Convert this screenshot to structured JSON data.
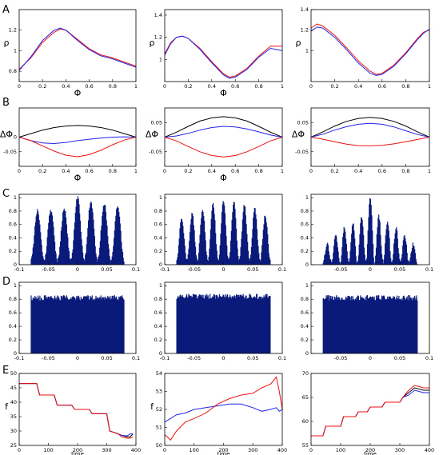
{
  "row_labels": [
    "A",
    "B",
    "C",
    "D",
    "E"
  ],
  "colors": {
    "black": "#000000",
    "blue": "#2222ee",
    "red": "#ee1111",
    "bars": "#0a1a7a"
  },
  "chart_data": [
    {
      "id": "A1",
      "type": "line",
      "ylabel": "ρ",
      "xlabel": "Φ",
      "xlim": [
        0,
        1
      ],
      "ylim": [
        0.7,
        1.4
      ],
      "xticks": [
        "0",
        "0.2",
        "0.4",
        "0.6",
        "0.8",
        "1"
      ],
      "yticks": [
        "0.8",
        "1",
        "1.2"
      ],
      "x": [
        0,
        0.1,
        0.2,
        0.3,
        0.35,
        0.4,
        0.5,
        0.6,
        0.7,
        0.8,
        0.9,
        1.0
      ],
      "series": [
        {
          "color": "red",
          "values": [
            0.82,
            0.93,
            1.08,
            1.18,
            1.21,
            1.2,
            1.11,
            1.02,
            0.96,
            0.93,
            0.89,
            0.85
          ]
        },
        {
          "color": "blue",
          "values": [
            0.81,
            0.94,
            1.1,
            1.2,
            1.22,
            1.2,
            1.1,
            1.01,
            0.95,
            0.92,
            0.88,
            0.84
          ]
        }
      ]
    },
    {
      "id": "A2",
      "type": "line",
      "ylabel": "ρ",
      "xlabel": "Φ",
      "xlim": [
        0,
        1
      ],
      "ylim": [
        0.8,
        1.45
      ],
      "xticks": [
        "0",
        "0.2",
        "0.4",
        "0.6",
        "0.8",
        "1"
      ],
      "yticks": [
        "1",
        "1.2",
        "1.4"
      ],
      "x": [
        0,
        0.05,
        0.1,
        0.15,
        0.2,
        0.3,
        0.4,
        0.5,
        0.55,
        0.6,
        0.7,
        0.8,
        0.9,
        1.0
      ],
      "series": [
        {
          "color": "red",
          "values": [
            1.05,
            1.15,
            1.2,
            1.21,
            1.19,
            1.1,
            0.98,
            0.87,
            0.84,
            0.85,
            0.92,
            1.03,
            1.12,
            1.12
          ]
        },
        {
          "color": "blue",
          "values": [
            1.04,
            1.14,
            1.2,
            1.21,
            1.19,
            1.09,
            0.97,
            0.86,
            0.83,
            0.84,
            0.91,
            1.02,
            1.1,
            1.08
          ]
        }
      ]
    },
    {
      "id": "A3",
      "type": "line",
      "ylabel": "ρ",
      "xlabel": "",
      "xlim": [
        0,
        1
      ],
      "ylim": [
        0.7,
        1.4
      ],
      "xticks": [
        "0",
        "0.2",
        "0.4",
        "0.6",
        "0.8",
        "1"
      ],
      "yticks": [
        "1",
        "1.2",
        "1.4"
      ],
      "x": [
        0,
        0.05,
        0.1,
        0.2,
        0.3,
        0.4,
        0.5,
        0.55,
        0.6,
        0.7,
        0.8,
        0.9,
        0.95,
        1.0
      ],
      "series": [
        {
          "color": "red",
          "values": [
            1.22,
            1.26,
            1.24,
            1.15,
            1.03,
            0.9,
            0.8,
            0.77,
            0.78,
            0.86,
            0.98,
            1.12,
            1.18,
            1.2
          ]
        },
        {
          "color": "blue",
          "values": [
            1.19,
            1.23,
            1.22,
            1.13,
            1.01,
            0.88,
            0.78,
            0.76,
            0.77,
            0.85,
            0.97,
            1.11,
            1.17,
            1.21
          ]
        }
      ]
    },
    {
      "id": "B1",
      "type": "line",
      "ylabel": "ΔΦ",
      "xlabel": "Φ",
      "xlim": [
        0,
        1
      ],
      "ylim": [
        -0.1,
        0.1
      ],
      "xticks": [
        "0",
        "0.2",
        "0.4",
        "0.6",
        "0.8",
        "1"
      ],
      "yticks": [
        "-0.05",
        "0"
      ],
      "x": [
        0,
        0.1,
        0.2,
        0.3,
        0.4,
        0.5,
        0.6,
        0.7,
        0.8,
        0.9,
        1.0
      ],
      "series": [
        {
          "color": "black",
          "values": [
            0,
            0.012,
            0.024,
            0.033,
            0.038,
            0.04,
            0.038,
            0.033,
            0.024,
            0.012,
            0
          ]
        },
        {
          "color": "blue",
          "values": [
            0,
            -0.012,
            -0.02,
            -0.022,
            -0.018,
            -0.012,
            -0.007,
            -0.003,
            0,
            0.001,
            0
          ]
        },
        {
          "color": "red",
          "values": [
            0,
            -0.012,
            -0.03,
            -0.048,
            -0.062,
            -0.067,
            -0.06,
            -0.045,
            -0.026,
            -0.01,
            0
          ]
        }
      ]
    },
    {
      "id": "B2",
      "type": "line",
      "ylabel": "ΔΦ",
      "xlabel": "Φ",
      "xlim": [
        0,
        1
      ],
      "ylim": [
        -0.1,
        0.1
      ],
      "xticks": [
        "0",
        "0.2",
        "0.4",
        "0.6",
        "0.8",
        "1"
      ],
      "yticks": [
        "-0.05",
        "0.05"
      ],
      "x": [
        0,
        0.1,
        0.2,
        0.3,
        0.4,
        0.5,
        0.6,
        0.7,
        0.8,
        0.9,
        1.0
      ],
      "series": [
        {
          "color": "black",
          "values": [
            0,
            0.017,
            0.037,
            0.055,
            0.066,
            0.07,
            0.066,
            0.055,
            0.037,
            0.017,
            0
          ]
        },
        {
          "color": "blue",
          "values": [
            0,
            0.004,
            0.013,
            0.024,
            0.033,
            0.037,
            0.035,
            0.028,
            0.018,
            0.007,
            0
          ]
        },
        {
          "color": "red",
          "values": [
            0,
            -0.013,
            -0.032,
            -0.05,
            -0.063,
            -0.068,
            -0.063,
            -0.05,
            -0.032,
            -0.013,
            0
          ]
        }
      ]
    },
    {
      "id": "B3",
      "type": "line",
      "ylabel": "ΔΦ",
      "xlabel": "",
      "xlim": [
        0,
        1
      ],
      "ylim": [
        -0.1,
        0.1
      ],
      "xticks": [
        "0",
        "0.2",
        "0.4",
        "0.6",
        "0.8",
        "1"
      ],
      "yticks": [
        "-0.05",
        "0.05"
      ],
      "x": [
        0,
        0.1,
        0.2,
        0.3,
        0.4,
        0.5,
        0.6,
        0.7,
        0.8,
        0.9,
        1.0
      ],
      "series": [
        {
          "color": "black",
          "values": [
            0,
            0.018,
            0.038,
            0.054,
            0.064,
            0.068,
            0.064,
            0.054,
            0.038,
            0.018,
            0
          ]
        },
        {
          "color": "blue",
          "values": [
            0,
            0.01,
            0.024,
            0.036,
            0.044,
            0.047,
            0.044,
            0.035,
            0.022,
            0.009,
            0
          ]
        },
        {
          "color": "red",
          "values": [
            0,
            -0.007,
            -0.016,
            -0.024,
            -0.029,
            -0.03,
            -0.028,
            -0.023,
            -0.016,
            -0.008,
            0
          ]
        }
      ]
    },
    {
      "id": "C1",
      "type": "histogram",
      "xlim": [
        -0.1,
        0.1
      ],
      "ylim": [
        0,
        1.05
      ],
      "xticks": [
        "-0.1",
        "-0.05",
        "0",
        "0.05",
        "0.1"
      ],
      "yticks": [
        "0",
        "0.2",
        "0.4",
        "0.6",
        "0.8",
        "1"
      ],
      "data_range": [
        -0.08,
        0.08
      ],
      "peaks": 7,
      "peak_heights": [
        0.8,
        0.8,
        0.82,
        1.0,
        0.93,
        0.9,
        0.87
      ],
      "troughs": 0.05
    },
    {
      "id": "C2",
      "type": "histogram",
      "xlim": [
        -0.1,
        0.1
      ],
      "ylim": [
        0,
        1.05
      ],
      "xticks": [
        "-0.1",
        "-0.05",
        "0",
        "0.05",
        "0.1"
      ],
      "yticks": [
        "0",
        "0.2",
        "0.4",
        "0.6",
        "0.8",
        "1"
      ],
      "data_range": [
        -0.08,
        0.08
      ],
      "peaks": 9,
      "peak_heights": [
        0.68,
        0.74,
        0.82,
        0.9,
        0.94,
        0.92,
        0.88,
        0.82,
        0.72
      ],
      "troughs": 0.05
    },
    {
      "id": "C3",
      "type": "histogram",
      "xlim": [
        -0.1,
        0.1
      ],
      "ylim": [
        0,
        1.05
      ],
      "xticks": [
        "-0.05",
        "0",
        "0.05",
        "0.1"
      ],
      "yticks": [
        "0",
        "0.2",
        "0.4",
        "0.6",
        "0.8",
        "1"
      ],
      "data_range": [
        -0.08,
        0.08
      ],
      "peaks": 11,
      "peak_heights": [
        0.3,
        0.42,
        0.55,
        0.62,
        0.72,
        1.0,
        0.72,
        0.64,
        0.54,
        0.42,
        0.3
      ],
      "troughs": 0.02
    },
    {
      "id": "D1",
      "type": "histogram",
      "xlim": [
        -0.1,
        0.1
      ],
      "ylim": [
        0,
        1.05
      ],
      "xticks": [
        "-0.1",
        "-0.05",
        "0",
        "0.05",
        "0.1"
      ],
      "yticks": [
        "0",
        "0.2",
        "0.4",
        "0.6",
        "0.8",
        "1"
      ],
      "data_range": [
        -0.08,
        0.08
      ],
      "level": 0.8
    },
    {
      "id": "D2",
      "type": "histogram",
      "xlim": [
        -0.1,
        0.1
      ],
      "ylim": [
        0,
        1.05
      ],
      "xticks": [
        "-0.1",
        "-0.05",
        "0",
        "0.05",
        "0.1"
      ],
      "yticks": [
        "0",
        "0.2",
        "0.4",
        "0.6",
        "0.8",
        "1"
      ],
      "data_range": [
        -0.08,
        0.08
      ],
      "level": 0.82
    },
    {
      "id": "D3",
      "type": "histogram",
      "xlim": [
        -0.1,
        0.1
      ],
      "ylim": [
        0,
        1.05
      ],
      "xticks": [
        "-0.05",
        "0",
        "0.05",
        "0.1"
      ],
      "yticks": [
        "0",
        "0.2",
        "0.4",
        "0.6",
        "0.8",
        "1"
      ],
      "data_range": [
        -0.08,
        0.08
      ],
      "level": 0.8
    },
    {
      "id": "E1",
      "type": "line",
      "ylabel": "f",
      "xlabel": "time",
      "xlim": [
        0,
        400
      ],
      "ylim": [
        25,
        50
      ],
      "xticks": [
        "0",
        "100",
        "200",
        "300",
        "400"
      ],
      "yticks": [
        "25",
        "30",
        "35",
        "40",
        "45",
        "50"
      ],
      "x": [
        0,
        30,
        60,
        70,
        120,
        130,
        180,
        190,
        240,
        250,
        300,
        310,
        340,
        350,
        370,
        380,
        390
      ],
      "series": [
        {
          "color": "black",
          "values": [
            46.5,
            46.5,
            46.5,
            42.5,
            42.5,
            39,
            39,
            37.5,
            37.5,
            36,
            36,
            30,
            29,
            28.5,
            28,
            28,
            29
          ]
        },
        {
          "color": "blue",
          "values": [
            46.5,
            46.5,
            46.5,
            42.5,
            42.5,
            39,
            39,
            37.5,
            37.5,
            36,
            36,
            30,
            29,
            28.5,
            28.3,
            29,
            29
          ]
        },
        {
          "color": "red",
          "values": [
            46.5,
            46.5,
            46.5,
            42.5,
            42.5,
            39,
            39,
            37.5,
            37.5,
            36,
            36,
            30,
            29,
            28,
            27.5,
            27.5,
            28
          ]
        }
      ]
    },
    {
      "id": "E2",
      "type": "line",
      "ylabel": "f",
      "xlabel": "time",
      "xlim": [
        0,
        400
      ],
      "ylim": [
        50,
        54
      ],
      "xticks": [
        "0",
        "100",
        "200",
        "300",
        "400"
      ],
      "yticks": [
        "50",
        "51",
        "52",
        "53",
        "54"
      ],
      "x": [
        0,
        20,
        40,
        70,
        100,
        140,
        180,
        220,
        260,
        300,
        330,
        360,
        380,
        390,
        400
      ],
      "series": [
        {
          "color": "blue",
          "values": [
            51.3,
            51.5,
            51.7,
            51.8,
            52.0,
            52.1,
            52.2,
            52.3,
            52.3,
            52.1,
            51.9,
            52.0,
            52.1,
            51.9,
            52.0
          ]
        },
        {
          "color": "red",
          "values": [
            50.6,
            50.3,
            50.8,
            51.3,
            51.5,
            51.8,
            52.3,
            52.6,
            52.8,
            52.9,
            53.2,
            53.4,
            53.8,
            53.0,
            52.0
          ]
        }
      ]
    },
    {
      "id": "E3",
      "type": "line",
      "ylabel": "",
      "xlabel": "time",
      "xlim": [
        0,
        400
      ],
      "ylim": [
        55,
        70
      ],
      "xticks": [
        "0",
        "100",
        "200",
        "300",
        "400"
      ],
      "yticks": [
        "55",
        "60",
        "65",
        "70"
      ],
      "x": [
        0,
        40,
        50,
        100,
        110,
        150,
        160,
        190,
        200,
        240,
        250,
        300,
        310,
        330,
        350,
        380,
        400
      ],
      "series": [
        {
          "color": "black",
          "values": [
            57,
            57,
            59,
            59,
            61,
            61,
            62,
            62,
            63,
            63,
            64,
            64,
            65,
            66,
            67,
            66.5,
            66.5
          ]
        },
        {
          "color": "blue",
          "values": [
            57,
            57,
            59,
            59,
            61,
            61,
            62,
            62,
            63,
            63,
            64,
            64,
            65,
            65.5,
            66.5,
            66,
            66
          ]
        },
        {
          "color": "red",
          "values": [
            57,
            57,
            59,
            59,
            61,
            61,
            62,
            62,
            63,
            63,
            64,
            64,
            65,
            66.5,
            67.5,
            67,
            67
          ]
        }
      ]
    }
  ]
}
